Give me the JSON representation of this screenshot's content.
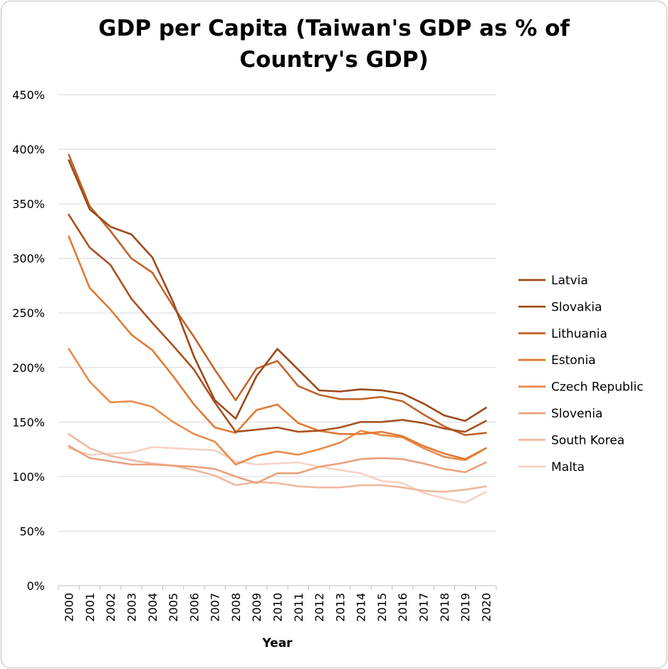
{
  "chart_data": {
    "type": "line",
    "title_lines": [
      "GDP per Capita (Taiwan's GDP as % of",
      "Country's GDP)"
    ],
    "xlabel": "Year",
    "ylabel": "",
    "ylim": [
      0,
      450
    ],
    "yticks": [
      0,
      50,
      100,
      150,
      200,
      250,
      300,
      350,
      400,
      450
    ],
    "ytick_labels": [
      "0%",
      "50%",
      "100%",
      "150%",
      "200%",
      "250%",
      "300%",
      "350%",
      "400%",
      "450%"
    ],
    "categories": [
      "2000",
      "2001",
      "2002",
      "2003",
      "2004",
      "2005",
      "2006",
      "2007",
      "2008",
      "2009",
      "2010",
      "2011",
      "2012",
      "2013",
      "2014",
      "2015",
      "2016",
      "2017",
      "2018",
      "2019",
      "2020"
    ],
    "grid": true,
    "legend_position": "right",
    "series": [
      {
        "name": "Latvia",
        "color": "#9b4a1a",
        "values": [
          390,
          345,
          329,
          322,
          301,
          260,
          210,
          170,
          153,
          192,
          217,
          198,
          179,
          178,
          180,
          179,
          176,
          167,
          156,
          151,
          163
        ]
      },
      {
        "name": "Slovakia",
        "color": "#a85220",
        "values": [
          340,
          310,
          294,
          263,
          241,
          220,
          198,
          168,
          141,
          143,
          145,
          141,
          142,
          145,
          150,
          150,
          152,
          149,
          144,
          141,
          151
        ]
      },
      {
        "name": "Lithuania",
        "color": "#c06428",
        "values": [
          395,
          348,
          325,
          300,
          287,
          256,
          228,
          198,
          170,
          199,
          206,
          183,
          175,
          171,
          171,
          173,
          169,
          157,
          146,
          138,
          140
        ]
      },
      {
        "name": "Estonia",
        "color": "#e07a35",
        "values": [
          320,
          273,
          253,
          230,
          216,
          192,
          166,
          145,
          140,
          161,
          166,
          149,
          142,
          139,
          139,
          141,
          137,
          128,
          121,
          116,
          126
        ]
      },
      {
        "name": "Czech Republic",
        "color": "#e88c4a",
        "values": [
          217,
          187,
          168,
          169,
          164,
          150,
          139,
          132,
          111,
          119,
          123,
          120,
          125,
          131,
          142,
          138,
          136,
          126,
          118,
          115,
          126
        ]
      },
      {
        "name": "Slovenia",
        "color": "#eca07c",
        "values": [
          128,
          117,
          114,
          111,
          111,
          110,
          109,
          107,
          100,
          94,
          103,
          103,
          109,
          112,
          116,
          117,
          116,
          112,
          107,
          104,
          113
        ]
      },
      {
        "name": "South Korea",
        "color": "#f0b8a0",
        "values": [
          139,
          126,
          119,
          115,
          112,
          110,
          106,
          101,
          92,
          95,
          94,
          91,
          90,
          90,
          92,
          92,
          90,
          87,
          86,
          88,
          91
        ]
      },
      {
        "name": "Malta",
        "color": "#f5d2c4",
        "values": [
          126,
          120,
          121,
          122,
          127,
          126,
          125,
          124,
          114,
          111,
          112,
          113,
          109,
          106,
          103,
          96,
          94,
          85,
          80,
          76,
          86
        ]
      }
    ]
  }
}
